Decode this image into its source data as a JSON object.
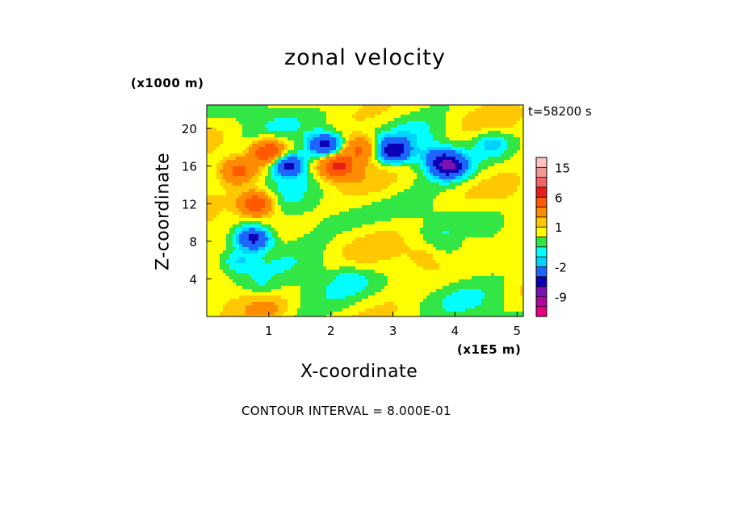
{
  "title": "zonal velocity",
  "z_unit": "(x1000 m)",
  "time_label": "t=58200 s",
  "x_unit": "(x1E5 m)",
  "contour_interval_label": "CONTOUR INTERVAL = 8.000E-01",
  "chart_data": {
    "type": "heatmap",
    "title": "zonal velocity",
    "xlabel": "X-coordinate",
    "ylabel": "Z-coordinate",
    "xlim": [
      0,
      5.1
    ],
    "ylim": [
      0,
      22.5
    ],
    "x_ticks": [
      1,
      2,
      3,
      4,
      5
    ],
    "y_ticks": [
      4,
      8,
      12,
      16,
      20
    ],
    "colorbar": {
      "levels": [
        -14,
        -11,
        -9,
        -6,
        -4,
        -2,
        -1.2,
        -0.4,
        0.4,
        1.2,
        2,
        4,
        6,
        9,
        12,
        15,
        18
      ],
      "colors": [
        "#e6007e",
        "#b4009c",
        "#7d10b0",
        "#0a00b4",
        "#1e64ff",
        "#00d2ff",
        "#00ffff",
        "#32e646",
        "#ffff00",
        "#ffc800",
        "#ff8c00",
        "#ff5a00",
        "#e61e1e",
        "#f06464",
        "#f59696",
        "#ffc3c3"
      ],
      "tick_labels": [
        "15",
        "6",
        "1",
        "-2",
        "-9"
      ]
    },
    "features": [
      {
        "x": 1.0,
        "z": 17.5,
        "value": 6
      },
      {
        "x": 0.8,
        "z": 12.0,
        "value": 6
      },
      {
        "x": 2.1,
        "z": 16.0,
        "value": 6
      },
      {
        "x": 2.5,
        "z": 17.8,
        "value": 4
      },
      {
        "x": 0.5,
        "z": 15.5,
        "value": 4
      },
      {
        "x": 0.75,
        "z": 8.3,
        "value": -6
      },
      {
        "x": 3.9,
        "z": 16.0,
        "value": -6
      },
      {
        "x": 3.0,
        "z": 17.6,
        "value": -6
      },
      {
        "x": 1.9,
        "z": 18.2,
        "value": -6
      },
      {
        "x": 1.3,
        "z": 16.2,
        "value": -6
      },
      {
        "x": 0.5,
        "z": 6.0,
        "value": -2
      },
      {
        "x": 4.6,
        "z": 18.5,
        "value": -2
      },
      {
        "x": 3.7,
        "z": 17.0,
        "value": -2
      },
      {
        "x": 0.9,
        "z": 3.0,
        "value": -1
      },
      {
        "x": 2.3,
        "z": 4.0,
        "value": -1
      },
      {
        "x": 3.4,
        "z": 19.5,
        "value": -0.5
      },
      {
        "x": 3.5,
        "z": 6.5,
        "value": 1
      },
      {
        "x": 4.2,
        "z": 8.5,
        "value": 1
      },
      {
        "x": 1.0,
        "z": 0.8,
        "value": 1
      }
    ]
  }
}
